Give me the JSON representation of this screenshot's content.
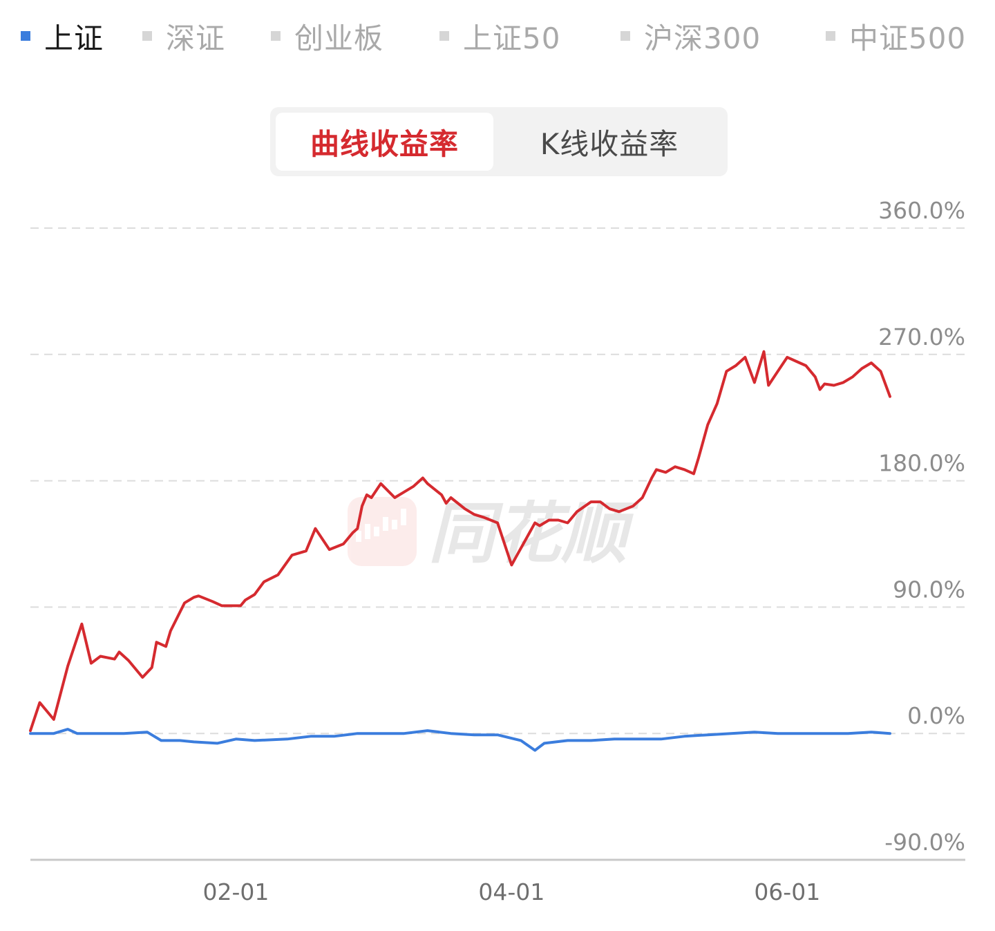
{
  "index_tabs": [
    {
      "label": "上证",
      "active": true,
      "color": "#3b7ddd"
    },
    {
      "label": "深证",
      "active": false
    },
    {
      "label": "创业板",
      "active": false
    },
    {
      "label": "上证50",
      "active": false
    },
    {
      "label": "沪深300",
      "active": false
    },
    {
      "label": "中证500",
      "active": false
    }
  ],
  "mode_switch": {
    "curve_label": "曲线收益率",
    "kline_label": "K线收益率",
    "active": "curve",
    "active_color": "#d52a2f"
  },
  "watermark": {
    "text": "同花顺",
    "icon": "candlestick-logo-icon"
  },
  "chart_data": {
    "type": "line",
    "y_unit": "%",
    "yticks": [
      360,
      270,
      180,
      90,
      0,
      -90
    ],
    "ytick_labels": [
      "360.0%",
      "270.0%",
      "180.0%",
      "90.0%",
      "0.0%",
      "-90.0%"
    ],
    "ylim": [
      -90,
      360
    ],
    "xtick_labels": [
      "02-01",
      "04-01",
      "06-01"
    ],
    "x_range": [
      0,
      184
    ],
    "xtick_positions": [
      44,
      103,
      162
    ],
    "grid": "horizontal-dashed",
    "series": [
      {
        "color": "#d52a2f",
        "x": [
          0,
          2,
          5,
          8,
          11,
          13,
          15,
          18,
          19,
          21,
          24,
          26,
          27,
          29,
          30,
          33,
          35,
          36,
          39,
          41,
          43,
          45,
          46,
          48,
          50,
          53,
          56,
          59,
          61,
          64,
          67,
          69,
          70,
          71,
          72,
          73,
          75,
          78,
          80,
          82,
          84,
          85,
          88,
          89,
          90,
          93,
          95,
          97,
          100,
          102,
          103,
          104,
          106,
          108,
          109,
          111,
          113,
          115,
          117,
          120,
          122,
          124,
          126,
          129,
          131,
          133,
          134,
          136,
          138,
          140,
          142,
          143,
          145,
          147,
          149,
          151,
          153,
          155,
          157,
          158,
          160,
          162,
          164,
          166,
          167,
          168,
          169,
          170,
          172,
          174,
          176,
          178,
          180,
          182,
          184
        ],
        "values": [
          2,
          22,
          10,
          48,
          78,
          50,
          55,
          53,
          58,
          52,
          40,
          47,
          65,
          62,
          73,
          93,
          97,
          98,
          94,
          91,
          91,
          91,
          95,
          99,
          108,
          113,
          127,
          130,
          146,
          131,
          135,
          143,
          146,
          162,
          170,
          168,
          178,
          168,
          172,
          176,
          182,
          178,
          170,
          164,
          168,
          160,
          156,
          154,
          150,
          130,
          120,
          126,
          138,
          150,
          148,
          152,
          152,
          150,
          158,
          165,
          165,
          160,
          158,
          162,
          168,
          182,
          188,
          186,
          190,
          188,
          185,
          196,
          220,
          235,
          258,
          262,
          268,
          250,
          272,
          248,
          258,
          268,
          265,
          262,
          258,
          254,
          245,
          249,
          248,
          250,
          254,
          260,
          264,
          258,
          240
        ]
      },
      {
        "color": "#3b7ddd",
        "x": [
          0,
          5,
          8,
          10,
          15,
          20,
          25,
          28,
          32,
          35,
          40,
          44,
          48,
          55,
          60,
          65,
          70,
          75,
          80,
          85,
          90,
          95,
          100,
          105,
          108,
          110,
          115,
          120,
          125,
          130,
          135,
          140,
          145,
          150,
          155,
          160,
          165,
          170,
          175,
          180,
          184
        ],
        "values": [
          0,
          0,
          3,
          0,
          0,
          0,
          1,
          -5,
          -5,
          -6,
          -7,
          -4,
          -5,
          -4,
          -2,
          -2,
          0,
          0,
          0,
          2,
          0,
          -1,
          -1,
          -5,
          -12,
          -7,
          -5,
          -5,
          -4,
          -4,
          -4,
          -2,
          -1,
          0,
          1,
          0,
          0,
          0,
          0,
          1,
          0
        ]
      }
    ]
  }
}
